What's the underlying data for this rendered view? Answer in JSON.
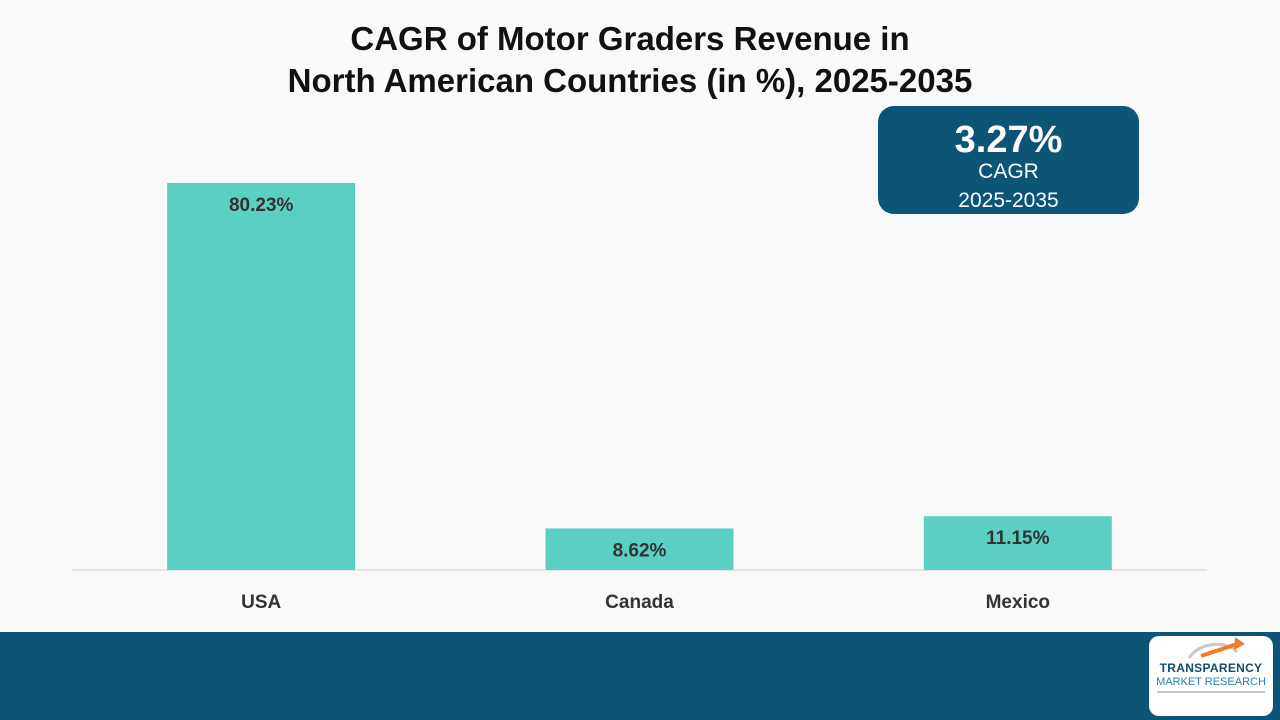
{
  "title": {
    "line1": "CAGR of Motor Graders Revenue in",
    "line2": "North American Countries (in %), 2025-2035"
  },
  "cagr_box": {
    "value": "3.27%",
    "label": "CAGR",
    "period": "2025-2035"
  },
  "logo": {
    "line1": "TRANSPARENCY",
    "line2": "MARKET RESEARCH"
  },
  "colors": {
    "bar": "#5ccfc3",
    "accent": "#0d5577",
    "logo_arrow": "#f07c2e"
  },
  "chart_data": {
    "type": "bar",
    "title": "CAGR of Motor Graders Revenue in North American Countries (in %), 2025-2035",
    "categories": [
      "USA",
      "Canada",
      "Mexico"
    ],
    "values": [
      80.23,
      8.62,
      11.15
    ],
    "data_labels": [
      "80.23%",
      "8.62%",
      "11.15%"
    ],
    "xlabel": "",
    "ylabel": "",
    "ylim": [
      0,
      80.23
    ],
    "grid": false,
    "legend": "none"
  }
}
